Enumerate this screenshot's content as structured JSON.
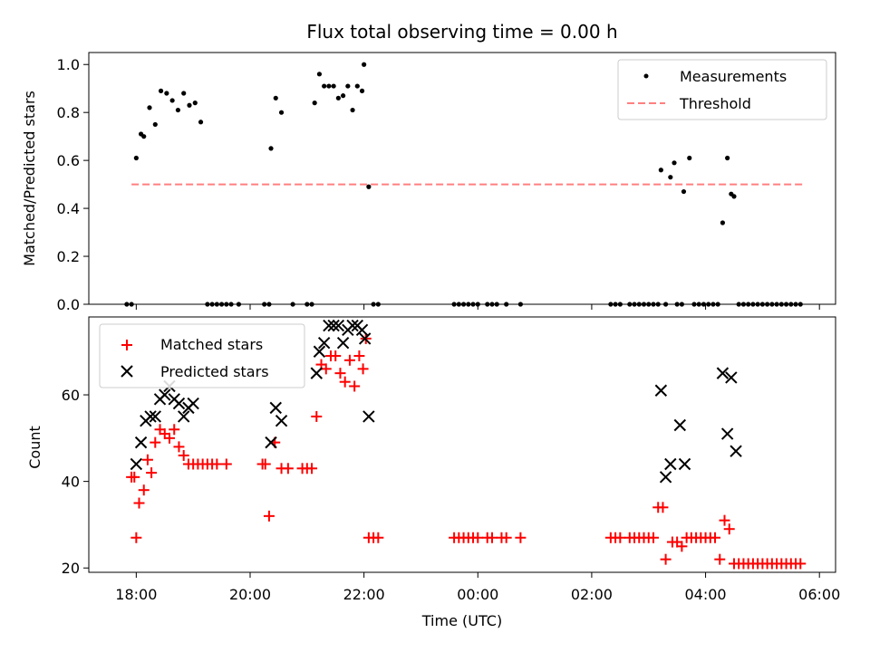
{
  "title": "Flux total observing time = 0.00 h",
  "colors": {
    "measurements": "#000000",
    "threshold": "#ff7f7f",
    "matched": "#ff0000",
    "predicted": "#000000"
  },
  "chart_data": [
    {
      "type": "scatter",
      "ylabel": "Matched/Predicted stars",
      "ylim": [
        0,
        1.05
      ],
      "yticks": [
        0.0,
        0.2,
        0.4,
        0.6,
        0.8,
        1.0
      ],
      "ytick_labels": [
        "0.0",
        "0.2",
        "0.4",
        "0.6",
        "0.8",
        "1.0"
      ],
      "legend_position": "top-right",
      "series": [
        {
          "name": "Measurements",
          "marker": "dot",
          "points": [
            [
              "17:50",
              0
            ],
            [
              "17:55",
              0
            ],
            [
              "18:00",
              0.61
            ],
            [
              "18:05",
              0.71
            ],
            [
              "18:08",
              0.7
            ],
            [
              "18:14",
              0.82
            ],
            [
              "18:20",
              0.75
            ],
            [
              "18:26",
              0.89
            ],
            [
              "18:32",
              0.88
            ],
            [
              "18:38",
              0.85
            ],
            [
              "18:44",
              0.81
            ],
            [
              "18:50",
              0.88
            ],
            [
              "18:56",
              0.83
            ],
            [
              "19:02",
              0.84
            ],
            [
              "19:08",
              0.76
            ],
            [
              "19:15",
              0
            ],
            [
              "19:20",
              0
            ],
            [
              "19:25",
              0
            ],
            [
              "19:30",
              0
            ],
            [
              "19:35",
              0
            ],
            [
              "19:40",
              0
            ],
            [
              "19:48",
              0
            ],
            [
              "20:15",
              0
            ],
            [
              "20:20",
              0
            ],
            [
              "20:22",
              0.65
            ],
            [
              "20:27",
              0.86
            ],
            [
              "20:33",
              0.8
            ],
            [
              "20:45",
              0
            ],
            [
              "21:00",
              0
            ],
            [
              "21:05",
              0
            ],
            [
              "21:08",
              0.84
            ],
            [
              "21:13",
              0.96
            ],
            [
              "21:18",
              0.91
            ],
            [
              "21:23",
              0.91
            ],
            [
              "21:28",
              0.91
            ],
            [
              "21:33",
              0.86
            ],
            [
              "21:38",
              0.87
            ],
            [
              "21:43",
              0.91
            ],
            [
              "21:48",
              0.81
            ],
            [
              "21:53",
              0.91
            ],
            [
              "21:58",
              0.89
            ],
            [
              "22:00",
              1.0
            ],
            [
              "22:05",
              0.49
            ],
            [
              "22:10",
              0
            ],
            [
              "22:15",
              0
            ],
            [
              "23:35",
              0
            ],
            [
              "23:40",
              0
            ],
            [
              "23:45",
              0
            ],
            [
              "23:50",
              0
            ],
            [
              "23:55",
              0
            ],
            [
              "00:00",
              0
            ],
            [
              "00:10",
              0
            ],
            [
              "00:15",
              0
            ],
            [
              "00:20",
              0
            ],
            [
              "00:30",
              0
            ],
            [
              "00:45",
              0
            ],
            [
              "02:20",
              0
            ],
            [
              "02:25",
              0
            ],
            [
              "02:30",
              0
            ],
            [
              "02:40",
              0
            ],
            [
              "02:45",
              0
            ],
            [
              "02:50",
              0
            ],
            [
              "02:55",
              0
            ],
            [
              "03:00",
              0
            ],
            [
              "03:05",
              0
            ],
            [
              "03:10",
              0
            ],
            [
              "03:13",
              0.56
            ],
            [
              "03:18",
              0
            ],
            [
              "03:23",
              0.53
            ],
            [
              "03:27",
              0.59
            ],
            [
              "03:30",
              0
            ],
            [
              "03:35",
              0
            ],
            [
              "03:37",
              0.47
            ],
            [
              "03:43",
              0.61
            ],
            [
              "03:48",
              0
            ],
            [
              "03:53",
              0
            ],
            [
              "03:58",
              0
            ],
            [
              "04:03",
              0
            ],
            [
              "04:08",
              0
            ],
            [
              "04:13",
              0
            ],
            [
              "04:18",
              0.34
            ],
            [
              "04:23",
              0.61
            ],
            [
              "04:27",
              0.46
            ],
            [
              "04:30",
              0.45
            ],
            [
              "04:35",
              0
            ],
            [
              "04:40",
              0
            ],
            [
              "04:45",
              0
            ],
            [
              "04:50",
              0
            ],
            [
              "04:55",
              0
            ],
            [
              "05:00",
              0
            ],
            [
              "05:05",
              0
            ],
            [
              "05:10",
              0
            ],
            [
              "05:15",
              0
            ],
            [
              "05:20",
              0
            ],
            [
              "05:25",
              0
            ],
            [
              "05:30",
              0
            ],
            [
              "05:35",
              0
            ],
            [
              "05:40",
              0
            ]
          ]
        },
        {
          "name": "Threshold",
          "marker": "dashed-line",
          "x_range": [
            "17:55",
            "05:45"
          ],
          "value": 0.5
        }
      ]
    },
    {
      "type": "scatter",
      "ylabel": "Count",
      "xlabel": "Time (UTC)",
      "ylim": [
        19,
        78
      ],
      "yticks": [
        20,
        40,
        60
      ],
      "ytick_labels": [
        "20",
        "40",
        "60"
      ],
      "x_start": "17:00",
      "xlim": [
        "17:10",
        "06:17"
      ],
      "xticks": [
        "18:00",
        "20:00",
        "22:00",
        "00:00",
        "02:00",
        "04:00",
        "06:00"
      ],
      "xtick_labels": [
        "18:00",
        "20:00",
        "22:00",
        "00:00",
        "02:00",
        "04:00",
        "06:00"
      ],
      "legend_position": "top-left",
      "series": [
        {
          "name": "Matched stars",
          "marker": "plus",
          "points": [
            [
              "17:55",
              41
            ],
            [
              "17:58",
              41
            ],
            [
              "18:00",
              27
            ],
            [
              "18:03",
              35
            ],
            [
              "18:08",
              38
            ],
            [
              "18:12",
              45
            ],
            [
              "18:16",
              42
            ],
            [
              "18:20",
              49
            ],
            [
              "18:25",
              52
            ],
            [
              "18:30",
              51
            ],
            [
              "18:35",
              50
            ],
            [
              "18:40",
              52
            ],
            [
              "18:45",
              48
            ],
            [
              "18:50",
              46
            ],
            [
              "18:55",
              44
            ],
            [
              "19:00",
              44
            ],
            [
              "19:05",
              44
            ],
            [
              "19:10",
              44
            ],
            [
              "19:15",
              44
            ],
            [
              "19:20",
              44
            ],
            [
              "19:25",
              44
            ],
            [
              "19:35",
              44
            ],
            [
              "20:13",
              44
            ],
            [
              "20:16",
              44
            ],
            [
              "20:20",
              32
            ],
            [
              "20:26",
              49
            ],
            [
              "20:33",
              43
            ],
            [
              "20:40",
              43
            ],
            [
              "20:55",
              43
            ],
            [
              "21:00",
              43
            ],
            [
              "21:05",
              43
            ],
            [
              "21:10",
              55
            ],
            [
              "21:15",
              67
            ],
            [
              "21:20",
              66
            ],
            [
              "21:25",
              69
            ],
            [
              "21:30",
              69
            ],
            [
              "21:35",
              65
            ],
            [
              "21:40",
              63
            ],
            [
              "21:45",
              68
            ],
            [
              "21:50",
              62
            ],
            [
              "21:55",
              69
            ],
            [
              "21:59",
              66
            ],
            [
              "22:02",
              73
            ],
            [
              "22:05",
              27
            ],
            [
              "22:10",
              27
            ],
            [
              "22:15",
              27
            ],
            [
              "23:35",
              27
            ],
            [
              "23:40",
              27
            ],
            [
              "23:45",
              27
            ],
            [
              "23:50",
              27
            ],
            [
              "23:55",
              27
            ],
            [
              "00:00",
              27
            ],
            [
              "00:10",
              27
            ],
            [
              "00:15",
              27
            ],
            [
              "00:25",
              27
            ],
            [
              "00:30",
              27
            ],
            [
              "00:45",
              27
            ],
            [
              "02:20",
              27
            ],
            [
              "02:25",
              27
            ],
            [
              "02:30",
              27
            ],
            [
              "02:40",
              27
            ],
            [
              "02:45",
              27
            ],
            [
              "02:50",
              27
            ],
            [
              "02:55",
              27
            ],
            [
              "03:00",
              27
            ],
            [
              "03:05",
              27
            ],
            [
              "03:10",
              34
            ],
            [
              "03:15",
              34
            ],
            [
              "03:18",
              22
            ],
            [
              "03:25",
              26
            ],
            [
              "03:30",
              26
            ],
            [
              "03:35",
              25
            ],
            [
              "03:40",
              27
            ],
            [
              "03:45",
              27
            ],
            [
              "03:50",
              27
            ],
            [
              "03:55",
              27
            ],
            [
              "04:00",
              27
            ],
            [
              "04:05",
              27
            ],
            [
              "04:10",
              27
            ],
            [
              "04:15",
              22
            ],
            [
              "04:20",
              31
            ],
            [
              "04:25",
              29
            ],
            [
              "04:30",
              21
            ],
            [
              "04:35",
              21
            ],
            [
              "04:40",
              21
            ],
            [
              "04:45",
              21
            ],
            [
              "04:50",
              21
            ],
            [
              "04:55",
              21
            ],
            [
              "05:00",
              21
            ],
            [
              "05:05",
              21
            ],
            [
              "05:10",
              21
            ],
            [
              "05:15",
              21
            ],
            [
              "05:20",
              21
            ],
            [
              "05:25",
              21
            ],
            [
              "05:30",
              21
            ],
            [
              "05:35",
              21
            ],
            [
              "05:40",
              21
            ]
          ]
        },
        {
          "name": "Predicted stars",
          "marker": "x",
          "points": [
            [
              "18:00",
              44
            ],
            [
              "18:05",
              49
            ],
            [
              "18:10",
              54
            ],
            [
              "18:15",
              55
            ],
            [
              "18:20",
              55
            ],
            [
              "18:25",
              59
            ],
            [
              "18:30",
              60
            ],
            [
              "18:35",
              62
            ],
            [
              "18:40",
              59
            ],
            [
              "18:45",
              58
            ],
            [
              "18:50",
              55
            ],
            [
              "18:55",
              57
            ],
            [
              "19:00",
              58
            ],
            [
              "20:22",
              49
            ],
            [
              "20:27",
              57
            ],
            [
              "20:33",
              54
            ],
            [
              "21:10",
              65
            ],
            [
              "21:13",
              70
            ],
            [
              "21:18",
              72
            ],
            [
              "21:23",
              76
            ],
            [
              "21:28",
              76
            ],
            [
              "21:33",
              76
            ],
            [
              "21:38",
              72
            ],
            [
              "21:43",
              75
            ],
            [
              "21:48",
              76
            ],
            [
              "21:53",
              76
            ],
            [
              "21:58",
              75
            ],
            [
              "22:01",
              73
            ],
            [
              "22:05",
              55
            ],
            [
              "03:13",
              61
            ],
            [
              "03:18",
              41
            ],
            [
              "03:23",
              44
            ],
            [
              "03:33",
              53
            ],
            [
              "03:38",
              44
            ],
            [
              "04:18",
              65
            ],
            [
              "04:23",
              51
            ],
            [
              "04:27",
              64
            ],
            [
              "04:32",
              47
            ]
          ]
        }
      ]
    }
  ]
}
